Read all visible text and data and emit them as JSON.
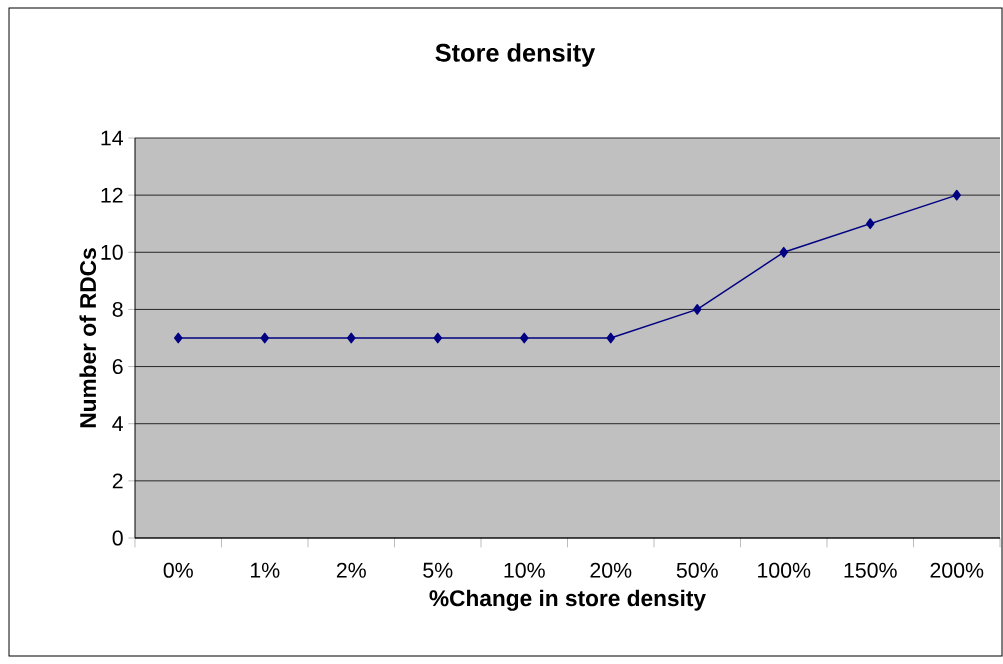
{
  "chart_data": {
    "type": "line",
    "title": "Store density",
    "xlabel": "%Change in store density",
    "ylabel": "Number of RDCs",
    "categories": [
      "0%",
      "1%",
      "2%",
      "5%",
      "10%",
      "20%",
      "50%",
      "100%",
      "150%",
      "200%"
    ],
    "values": [
      7,
      7,
      7,
      7,
      7,
      7,
      8,
      10,
      11,
      12
    ],
    "color": "#000080",
    "ylim": [
      0,
      14
    ],
    "yticks": [
      0,
      2,
      4,
      6,
      8,
      10,
      12,
      14
    ],
    "grid": "y",
    "marker": "diamond",
    "line_style": "solid"
  }
}
